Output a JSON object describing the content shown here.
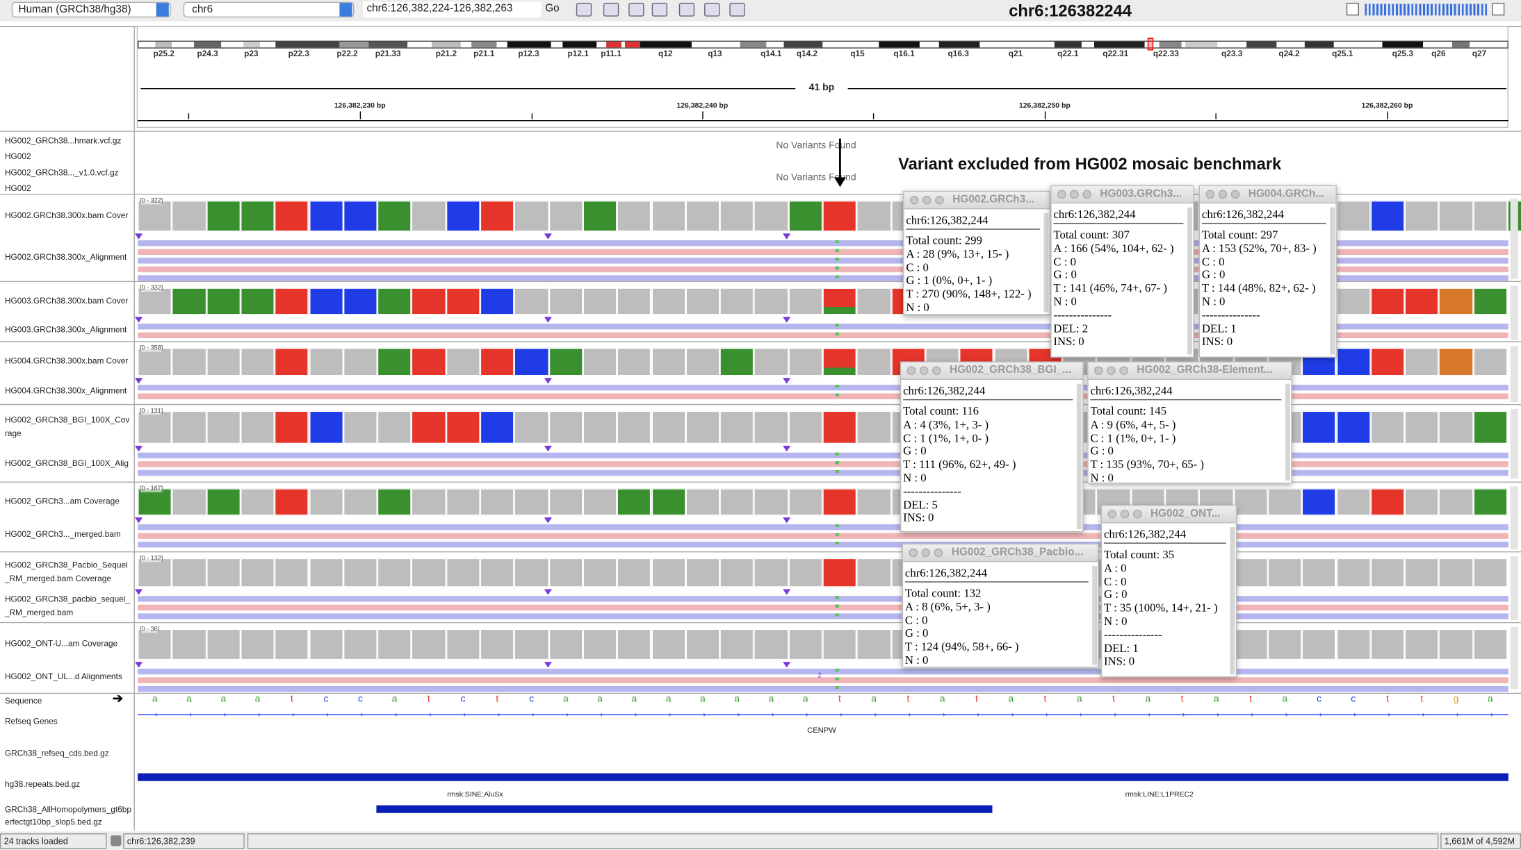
{
  "toolbar": {
    "genome": "Human (GRCh38/hg38)",
    "chromosome": "chr6",
    "locus": "chr6:126,382,224-126,382,263",
    "go": "Go",
    "title": "chr6:126382244"
  },
  "ideogram": {
    "bands": [
      "p25.2",
      "p24.3",
      "p23",
      "p22.3",
      "p22.2",
      "p21.33",
      "p21.2",
      "p21.1",
      "p12.3",
      "p12.1",
      "p11.1",
      "q12",
      "q13",
      "q14.1",
      "q14.2",
      "q15",
      "q16.1",
      "q16.3",
      "q21",
      "q22.1",
      "q22.31",
      "q22.33",
      "q23.3",
      "q24.2",
      "q25.1",
      "q25.3",
      "q26",
      "q27"
    ]
  },
  "ruler": {
    "span": "41 bp",
    "ticks": [
      "126,382,230 bp",
      "126,382,240 bp",
      "126,382,250 bp",
      "126,382,260 bp"
    ]
  },
  "annotation": "Variant excluded from HG002 mosaic benchmark",
  "variant_tracks": [
    {
      "name": "HG002_GRCh38...hmark.vcf.gz",
      "message": "No Variants Found"
    },
    {
      "name": "HG002"
    },
    {
      "name": "HG002_GRCh38..._v1.0.vcf.gz",
      "message": "No Variants Found"
    },
    {
      "name": "HG002"
    }
  ],
  "alignment_tracks": [
    {
      "coverage_name": [
        "HG002.GRCh38.300x.bam Cover"
      ],
      "range": "[0 - 322]",
      "alignment_name": [
        "HG002.GRCh38.300x_Alignment"
      ]
    },
    {
      "coverage_name": [
        "HG003.GRCh38.300x.bam Cover"
      ],
      "range": "[0 - 332]",
      "alignment_name": [
        "HG003.GRCh38.300x_Alignment"
      ]
    },
    {
      "coverage_name": [
        "HG004.GRCh38.300x.bam Cover"
      ],
      "range": "[0 - 358]",
      "alignment_name": [
        "HG004.GRCh38.300x_Alignment"
      ]
    },
    {
      "coverage_name": [
        "HG002_GRCh38_BGI_100X_Cov",
        "rage"
      ],
      "range": "[0 - 131]",
      "alignment_name": [
        "HG002_GRCh38_BGI_100X_Alig"
      ]
    },
    {
      "coverage_name": [
        "HG002_GRCh3...am Coverage"
      ],
      "range": "[0 - 167]",
      "alignment_name": [
        "HG002_GRCh3..._merged.bam"
      ]
    },
    {
      "coverage_name": [
        "HG002_GRCh38_Pacbio_Sequel",
        "_RM_merged.bam Coverage"
      ],
      "range": "[0 - 132]",
      "alignment_name": [
        "HG002_GRCh38_pacbio_sequel_",
        "_RM_merged.bam"
      ]
    },
    {
      "coverage_name": [
        "HG002_ONT-U...am Coverage"
      ],
      "range": "[0 - 36]",
      "alignment_name": [
        "HG002_ONT_UL...d Alignments"
      ]
    }
  ],
  "insertion_label": "2",
  "sequence": {
    "name": "Sequence",
    "bases": [
      "a",
      "a",
      "a",
      "a",
      "t",
      "c",
      "c",
      "a",
      "t",
      "c",
      "t",
      "c",
      "a",
      "a",
      "a",
      "a",
      "a",
      "a",
      "a",
      "a",
      "t",
      "a",
      "t",
      "a",
      "t",
      "a",
      "t",
      "a",
      "t",
      "a",
      "t",
      "a",
      "t",
      "a",
      "c",
      "c",
      "t",
      "t",
      "g",
      "a"
    ]
  },
  "feature_tracks": [
    {
      "name": [
        "Refseq Genes"
      ],
      "features": [
        "CENPW"
      ]
    },
    {
      "name": [
        "GRCh38_refseq_cds.bed.gz"
      ]
    },
    {
      "name": [
        "hg38.repeats.bed.gz"
      ],
      "features": [
        "rmsk:SINE:AluSx",
        "rmsk:LINE:L1PREC2"
      ]
    },
    {
      "name": [
        "GRCh38_AllHomopolymers_gt6bp",
        "erfectgt10bp_slop5.bed.gz"
      ]
    }
  ],
  "popups": [
    {
      "title": "HG002.GRCh3...",
      "locus": "chr6:126,382,244",
      "lines": [
        "Total count: 299",
        "A : 28 (9%, 13+, 15- )",
        "C : 0",
        "G : 1 (0%, 0+, 1- )",
        "T : 270 (90%, 148+, 122- )",
        "N : 0"
      ]
    },
    {
      "title": "HG003.GRCh3...",
      "locus": "chr6:126,382,244",
      "lines": [
        "Total count: 307",
        "A : 166 (54%, 104+, 62- )",
        "C : 0",
        "G : 0",
        "T : 141 (46%, 74+, 67- )",
        "N : 0",
        "---------------",
        "DEL: 2",
        "INS: 0"
      ]
    },
    {
      "title": "HG004.GRCh...",
      "locus": "chr6:126,382,244",
      "lines": [
        "Total count: 297",
        "A : 153 (52%, 70+, 83- )",
        "C : 0",
        "G : 0",
        "T : 144 (48%, 82+, 62- )",
        "N : 0",
        "---------------",
        "DEL: 1",
        "INS: 0"
      ]
    },
    {
      "title": "HG002_GRCh38_BGI_...",
      "locus": "chr6:126,382,244",
      "lines": [
        "Total count: 116",
        "A : 4 (3%, 1+, 3- )",
        "C : 1 (1%, 1+, 0- )",
        "G : 0",
        "T : 111 (96%, 62+, 49- )",
        "N : 0",
        "---------------",
        "DEL: 5",
        "INS: 0"
      ]
    },
    {
      "title": "HG002_GRCh38-Element...",
      "locus": "chr6:126,382,244",
      "lines": [
        "Total count: 145",
        "A : 9 (6%, 4+, 5- )",
        "C : 1 (1%, 0+, 1- )",
        "G : 0",
        "T : 135 (93%, 70+, 65- )",
        "N : 0"
      ]
    },
    {
      "title": "HG002_GRCh38_Pacbio...",
      "locus": "chr6:126,382,244",
      "lines": [
        "Total count: 132",
        "A : 8 (6%, 5+, 3- )",
        "C : 0",
        "G : 0",
        "T : 124 (94%, 58+, 66- )",
        "N : 0"
      ]
    },
    {
      "title": "HG002_ONT...",
      "locus": "chr6:126,382,244",
      "lines": [
        "Total count: 35",
        "A : 0",
        "C : 0",
        "G : 0",
        "T : 35 (100%, 14+, 21- )",
        "N : 0",
        "---------------",
        "DEL: 1",
        "INS: 0"
      ]
    }
  ],
  "status": {
    "tracks": "24 tracks loaded",
    "position": "chr6:126,382,239",
    "memory": "1,661M of 4,592M"
  }
}
